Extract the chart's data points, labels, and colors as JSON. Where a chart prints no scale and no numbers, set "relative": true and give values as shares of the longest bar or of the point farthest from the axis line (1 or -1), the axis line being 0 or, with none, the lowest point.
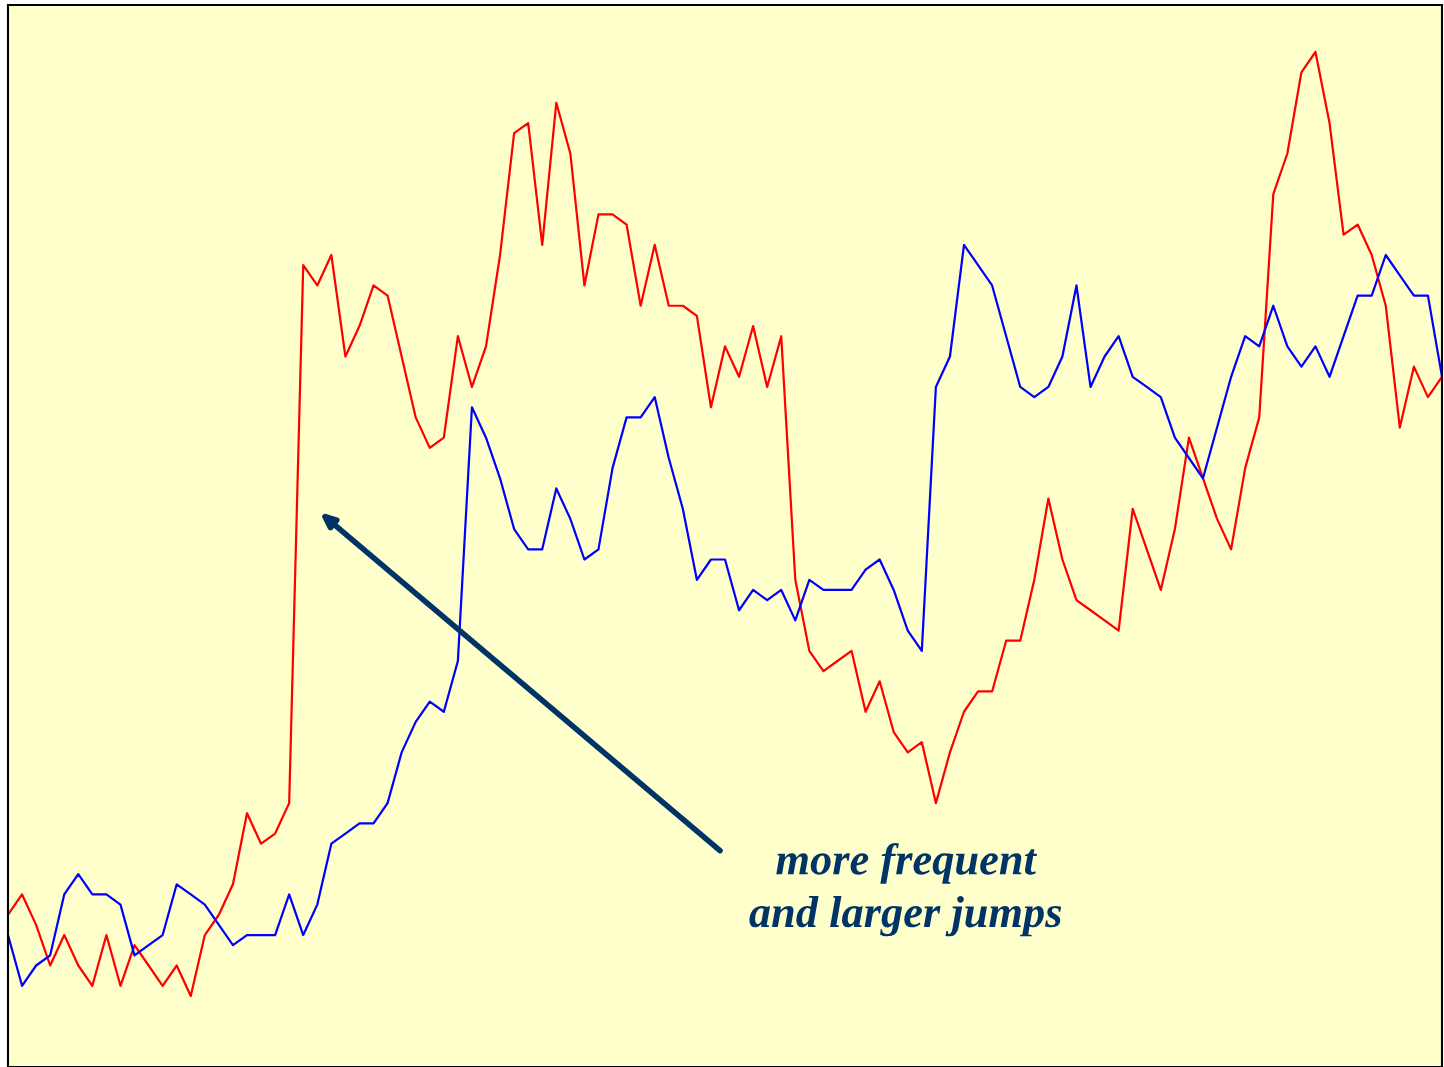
{
  "chart_data": {
    "type": "line",
    "relative": true,
    "marker": "none",
    "line_style": "solid",
    "categories": [
      null,
      null,
      null,
      null,
      null,
      null,
      null,
      null,
      null,
      null,
      null,
      null,
      null,
      null,
      null,
      null,
      null,
      null,
      null,
      null,
      null,
      null,
      null,
      null,
      null,
      null,
      null,
      null,
      null,
      null,
      null,
      null,
      null,
      null,
      null,
      null,
      null,
      null,
      null,
      null,
      null,
      null,
      null,
      null,
      null,
      null,
      null,
      null,
      null,
      null,
      null,
      null,
      null,
      null,
      null,
      null,
      null,
      null,
      null,
      null,
      null,
      null,
      null,
      null,
      null,
      null,
      null,
      null,
      null,
      null,
      null,
      null,
      null,
      null,
      null,
      null,
      null,
      null,
      null,
      null,
      null,
      null,
      null,
      null,
      null,
      null,
      null,
      null,
      null,
      null,
      null,
      null,
      null,
      null,
      null,
      null,
      null,
      null,
      null,
      null,
      null,
      null,
      null
    ],
    "series": [
      {
        "color": "#ff0000",
        "values": [
          0.15,
          0.17,
          0.14,
          0.1,
          0.13,
          0.1,
          0.08,
          0.13,
          0.08,
          0.12,
          0.1,
          0.08,
          0.1,
          0.07,
          0.13,
          0.15,
          0.18,
          0.25,
          0.22,
          0.23,
          0.26,
          0.79,
          0.77,
          0.8,
          0.7,
          0.73,
          0.77,
          0.76,
          0.7,
          0.64,
          0.61,
          0.62,
          0.72,
          0.67,
          0.71,
          0.8,
          0.92,
          0.93,
          0.81,
          0.95,
          0.9,
          0.77,
          0.84,
          0.84,
          0.83,
          0.75,
          0.81,
          0.75,
          0.75,
          0.74,
          0.65,
          0.71,
          0.68,
          0.73,
          0.67,
          0.72,
          0.48,
          0.41,
          0.39,
          0.4,
          0.41,
          0.35,
          0.38,
          0.33,
          0.31,
          0.32,
          0.26,
          0.31,
          0.35,
          0.37,
          0.37,
          0.42,
          0.42,
          0.48,
          0.56,
          0.5,
          0.46,
          0.45,
          0.44,
          0.43,
          0.55,
          0.51,
          0.47,
          0.53,
          0.62,
          0.58,
          0.54,
          0.51,
          0.59,
          0.64,
          0.86,
          0.9,
          0.98,
          1.0,
          0.93,
          0.82,
          0.83,
          0.8,
          0.75,
          0.63,
          0.69,
          0.66,
          0.68
        ]
      },
      {
        "color": "#0000ff",
        "values": [
          0.13,
          0.08,
          0.1,
          0.11,
          0.17,
          0.19,
          0.17,
          0.17,
          0.16,
          0.11,
          0.12,
          0.13,
          0.18,
          0.17,
          0.16,
          0.14,
          0.12,
          0.13,
          0.13,
          0.13,
          0.17,
          0.13,
          0.16,
          0.22,
          0.23,
          0.24,
          0.24,
          0.26,
          0.31,
          0.34,
          0.36,
          0.35,
          0.4,
          0.65,
          0.62,
          0.58,
          0.53,
          0.51,
          0.51,
          0.57,
          0.54,
          0.5,
          0.51,
          0.59,
          0.64,
          0.64,
          0.66,
          0.6,
          0.55,
          0.48,
          0.5,
          0.5,
          0.45,
          0.47,
          0.46,
          0.47,
          0.44,
          0.48,
          0.47,
          0.47,
          0.47,
          0.49,
          0.5,
          0.47,
          0.43,
          0.41,
          0.67,
          0.7,
          0.81,
          0.79,
          0.77,
          0.72,
          0.67,
          0.66,
          0.67,
          0.7,
          0.77,
          0.67,
          0.7,
          0.72,
          0.68,
          0.67,
          0.66,
          0.62,
          0.6,
          0.58,
          0.63,
          0.68,
          0.72,
          0.71,
          0.75,
          0.71,
          0.69,
          0.71,
          0.68,
          0.72,
          0.76,
          0.76,
          0.8,
          0.78,
          0.76,
          0.76,
          0.68
        ]
      }
    ],
    "annotations": [
      "more frequent\nand larger jumps"
    ]
  }
}
